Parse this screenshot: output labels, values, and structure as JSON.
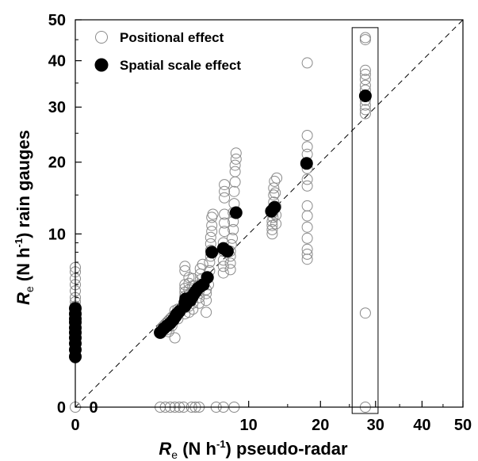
{
  "chart_data": {
    "type": "scatter",
    "axes": {
      "x": {
        "scale": "sqrt",
        "range": [
          0,
          50
        ],
        "ticks": [
          "0",
          "10",
          "20",
          "30",
          "40",
          "50"
        ],
        "extra_tick": {
          "value": 0,
          "label": "0",
          "note_near_y_axis": true
        },
        "label": {
          "symbol": "R",
          "subscript": "e",
          "text": " (N h",
          "superscript": "-1",
          "tail": ") pseudo-radar"
        }
      },
      "y": {
        "scale": "sqrt",
        "range": [
          0,
          50
        ],
        "ticks": [
          "0",
          "10",
          "20",
          "30",
          "40",
          "50"
        ],
        "label": {
          "symbol": "R",
          "subscript": "e",
          "text": " (N h",
          "superscript": "-1",
          "tail": ") rain gauges"
        }
      }
    },
    "identity_line": true,
    "legend": {
      "placement": "top-left",
      "entries": [
        {
          "label": "Positional effect",
          "marker": "open-circle"
        },
        {
          "label": "Spatial scale effect",
          "marker": "filled-circle"
        }
      ]
    },
    "highlight_box": {
      "x_range": [
        25.5,
        30.5
      ],
      "y_range": [
        0,
        48
      ]
    },
    "series": [
      {
        "name": "Positional effect",
        "marker": "open-circle",
        "points": [
          [
            0,
            0
          ],
          [
            0,
            0.8
          ],
          [
            0,
            1.1
          ],
          [
            0,
            1.4
          ],
          [
            0,
            1.6
          ],
          [
            0,
            1.8
          ],
          [
            0,
            2.0
          ],
          [
            0,
            2.3
          ],
          [
            0,
            2.5
          ],
          [
            0,
            2.7
          ],
          [
            0,
            3.0
          ],
          [
            0,
            3.4
          ],
          [
            0,
            3.7
          ],
          [
            0,
            4.0
          ],
          [
            0,
            4.5
          ],
          [
            0,
            5.0
          ],
          [
            0,
            5.5
          ],
          [
            0,
            6.1
          ],
          [
            0,
            6.5
          ],
          [
            2.4,
            0
          ],
          [
            2.7,
            0
          ],
          [
            3.0,
            0
          ],
          [
            3.3,
            0
          ],
          [
            3.6,
            0
          ],
          [
            3.9,
            0
          ],
          [
            4.5,
            0
          ],
          [
            4.8,
            0
          ],
          [
            5.1,
            0
          ],
          [
            6.6,
            0
          ],
          [
            7.3,
            0
          ],
          [
            8.4,
            0
          ],
          [
            2.4,
            1.9
          ],
          [
            2.5,
            2.1
          ],
          [
            2.6,
            2.2
          ],
          [
            2.7,
            2.3
          ],
          [
            2.8,
            2.4
          ],
          [
            2.9,
            2.5
          ],
          [
            2.8,
            2.0
          ],
          [
            2.9,
            1.9
          ],
          [
            3.0,
            2.6
          ],
          [
            3.0,
            2.3
          ],
          [
            3.1,
            2.7
          ],
          [
            3.2,
            2.5
          ],
          [
            3.1,
            2.2
          ],
          [
            3.3,
            2.8
          ],
          [
            3.4,
            2.9
          ],
          [
            3.3,
            3.1
          ],
          [
            3.5,
            3.2
          ],
          [
            3.6,
            3.0
          ],
          [
            3.5,
            2.6
          ],
          [
            3.3,
            1.6
          ],
          [
            4.0,
            2.9
          ],
          [
            4.0,
            3.3
          ],
          [
            4.0,
            3.6
          ],
          [
            4.0,
            3.8
          ],
          [
            4.0,
            4.1
          ],
          [
            4.0,
            4.4
          ],
          [
            4.0,
            4.7
          ],
          [
            4.0,
            5.0
          ],
          [
            4.0,
            6.2
          ],
          [
            4.0,
            6.6
          ],
          [
            4.3,
            3.0
          ],
          [
            4.3,
            3.4
          ],
          [
            4.3,
            3.8
          ],
          [
            4.3,
            4.2
          ],
          [
            4.3,
            4.6
          ],
          [
            4.3,
            5.1
          ],
          [
            4.3,
            5.6
          ],
          [
            4.6,
            3.2
          ],
          [
            4.6,
            3.6
          ],
          [
            4.6,
            4.0
          ],
          [
            4.6,
            4.4
          ],
          [
            4.6,
            4.9
          ],
          [
            4.6,
            5.5
          ],
          [
            5.1,
            3.6
          ],
          [
            5.1,
            4.0
          ],
          [
            5.1,
            4.5
          ],
          [
            5.1,
            5.0
          ],
          [
            5.2,
            5.4
          ],
          [
            5.2,
            5.9
          ],
          [
            5.2,
            6.4
          ],
          [
            5.4,
            6.8
          ],
          [
            5.7,
            3.0
          ],
          [
            5.7,
            3.8
          ],
          [
            5.7,
            4.3
          ],
          [
            5.7,
            4.6
          ],
          [
            5.9,
            5.0
          ],
          [
            5.9,
            5.6
          ],
          [
            6.0,
            6.2
          ],
          [
            6.0,
            7.0
          ],
          [
            6.1,
            7.6
          ],
          [
            6.1,
            8.2
          ],
          [
            6.1,
            8.9
          ],
          [
            6.1,
            9.6
          ],
          [
            6.2,
            10.3
          ],
          [
            6.2,
            11.0
          ],
          [
            6.2,
            12.0
          ],
          [
            6.3,
            12.4
          ],
          [
            7.3,
            6.0
          ],
          [
            7.3,
            6.6
          ],
          [
            7.3,
            7.2
          ],
          [
            7.3,
            8.1
          ],
          [
            7.3,
            9.0
          ],
          [
            7.4,
            10.3
          ],
          [
            7.4,
            11.3
          ],
          [
            7.4,
            12.4
          ],
          [
            7.4,
            14.6
          ],
          [
            7.4,
            15.5
          ],
          [
            7.4,
            16.5
          ],
          [
            8.0,
            6.3
          ],
          [
            8.0,
            6.9
          ],
          [
            8.0,
            7.6
          ],
          [
            8.0,
            8.1
          ],
          [
            8.1,
            8.8
          ],
          [
            8.2,
            9.5
          ],
          [
            8.3,
            10.5
          ],
          [
            8.3,
            11.5
          ],
          [
            8.3,
            12.6
          ],
          [
            8.4,
            13.8
          ],
          [
            8.4,
            15.5
          ],
          [
            8.5,
            16.9
          ],
          [
            8.5,
            18.5
          ],
          [
            8.5,
            19.5
          ],
          [
            8.6,
            20.5
          ],
          [
            8.6,
            21.5
          ],
          [
            12.9,
            10.0
          ],
          [
            12.9,
            10.5
          ],
          [
            12.9,
            11.0
          ],
          [
            12.9,
            11.5
          ],
          [
            13.0,
            12.0
          ],
          [
            13.0,
            12.6
          ],
          [
            13.0,
            13.2
          ],
          [
            13.1,
            14.0
          ],
          [
            13.1,
            15.0
          ],
          [
            13.1,
            16.0
          ],
          [
            13.2,
            17.0
          ],
          [
            13.5,
            17.5
          ],
          [
            13.4,
            11.2
          ],
          [
            13.4,
            12.3
          ],
          [
            13.4,
            13.4
          ],
          [
            13.3,
            15.3
          ],
          [
            17.9,
            7.3
          ],
          [
            17.9,
            7.8
          ],
          [
            17.9,
            8.3
          ],
          [
            17.9,
            9.5
          ],
          [
            17.9,
            10.8
          ],
          [
            17.9,
            12.2
          ],
          [
            17.9,
            13.5
          ],
          [
            17.9,
            16.3
          ],
          [
            17.9,
            17.3
          ],
          [
            17.9,
            19.0
          ],
          [
            17.9,
            21.3
          ],
          [
            17.9,
            22.6
          ],
          [
            17.9,
            24.6
          ],
          [
            17.9,
            39.5
          ],
          [
            28.0,
            0
          ],
          [
            28.0,
            2.95
          ],
          [
            28.0,
            28.7
          ],
          [
            28.0,
            29.5
          ],
          [
            28.0,
            30.4
          ],
          [
            28.0,
            31.4
          ],
          [
            28.0,
            33.5
          ],
          [
            28.0,
            34.5
          ],
          [
            28.0,
            35.8
          ],
          [
            28.0,
            36.9
          ],
          [
            28.0,
            37.8
          ],
          [
            28.0,
            45.0
          ],
          [
            28.0,
            45.5
          ]
        ]
      },
      {
        "name": "Spatial scale effect",
        "marker": "filled-circle",
        "points": [
          [
            0,
            0.85
          ],
          [
            0,
            1.1
          ],
          [
            0,
            1.35
          ],
          [
            0,
            1.6
          ],
          [
            0,
            1.85
          ],
          [
            0,
            2.1
          ],
          [
            0,
            2.4
          ],
          [
            0,
            2.6
          ],
          [
            0,
            2.9
          ],
          [
            0,
            3.25
          ],
          [
            2.4,
            1.85
          ],
          [
            2.6,
            2.05
          ],
          [
            2.8,
            2.2
          ],
          [
            3.0,
            2.35
          ],
          [
            3.2,
            2.55
          ],
          [
            3.35,
            2.75
          ],
          [
            3.45,
            2.9
          ],
          [
            3.6,
            3.05
          ],
          [
            4.0,
            3.4
          ],
          [
            4.0,
            3.65
          ],
          [
            4.05,
            3.9
          ],
          [
            4.1,
            3.55
          ],
          [
            4.2,
            3.75
          ],
          [
            4.3,
            3.95
          ],
          [
            4.4,
            3.8
          ],
          [
            4.55,
            4.05
          ],
          [
            4.7,
            4.3
          ],
          [
            4.85,
            4.5
          ],
          [
            5.0,
            4.7
          ],
          [
            5.2,
            4.85
          ],
          [
            5.45,
            5.0
          ],
          [
            5.8,
            5.6
          ],
          [
            6.2,
            8.0
          ],
          [
            7.3,
            8.4
          ],
          [
            7.7,
            8.1
          ],
          [
            8.6,
            12.6
          ],
          [
            12.8,
            12.8
          ],
          [
            13.2,
            13.3
          ],
          [
            17.8,
            19.8
          ],
          [
            28.0,
            32.3
          ]
        ]
      }
    ]
  }
}
